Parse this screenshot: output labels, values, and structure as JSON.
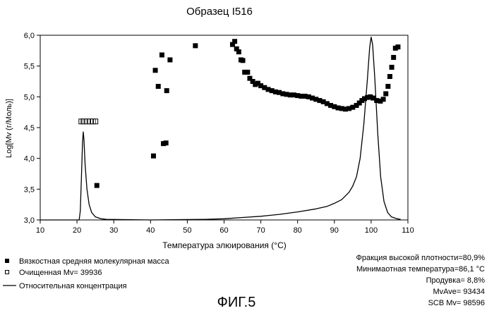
{
  "chart_data": {
    "type": "scatter",
    "title": "Образец I516",
    "xlabel": "Температура элюирования (°C)",
    "ylabel": "Log[Mv (г/Моль)]",
    "xlim": [
      10,
      110
    ],
    "ylim": [
      3.0,
      6.0
    ],
    "x_ticks": [
      10,
      20,
      30,
      40,
      50,
      60,
      70,
      80,
      90,
      100,
      110
    ],
    "y_ticks": [
      "3,0",
      "3,5",
      "4,0",
      "4,5",
      "5,0",
      "5,5",
      "6,0"
    ],
    "grid": false,
    "series": [
      {
        "name": "Вязкостная средняя молекулярная масса",
        "marker": "filled-square",
        "color": "#000000",
        "points": [
          [
            25.4,
            3.56
          ],
          [
            40.8,
            4.04
          ],
          [
            41.3,
            5.43
          ],
          [
            42.1,
            5.17
          ],
          [
            43.1,
            5.68
          ],
          [
            43.5,
            4.24
          ],
          [
            44.2,
            4.25
          ],
          [
            44.4,
            5.1
          ],
          [
            45.3,
            5.6
          ],
          [
            52.2,
            5.83
          ],
          [
            62.3,
            5.85
          ],
          [
            62.9,
            5.9
          ],
          [
            63.4,
            5.78
          ],
          [
            64.0,
            5.73
          ],
          [
            64.6,
            5.6
          ],
          [
            65.1,
            5.59
          ],
          [
            65.6,
            5.4
          ],
          [
            66.4,
            5.4
          ],
          [
            67.0,
            5.3
          ],
          [
            67.8,
            5.25
          ],
          [
            68.5,
            5.2
          ],
          [
            69.2,
            5.22
          ],
          [
            70.0,
            5.18
          ],
          [
            71.0,
            5.15
          ],
          [
            72.0,
            5.12
          ],
          [
            73.0,
            5.1
          ],
          [
            74.0,
            5.08
          ],
          [
            75.0,
            5.07
          ],
          [
            76.0,
            5.05
          ],
          [
            77.0,
            5.04
          ],
          [
            78.0,
            5.03
          ],
          [
            79.0,
            5.03
          ],
          [
            80.0,
            5.02
          ],
          [
            81.0,
            5.01
          ],
          [
            82.0,
            5.01
          ],
          [
            83.0,
            5.0
          ],
          [
            84.0,
            4.98
          ],
          [
            85.0,
            4.96
          ],
          [
            86.0,
            4.94
          ],
          [
            87.0,
            4.92
          ],
          [
            88.0,
            4.89
          ],
          [
            89.0,
            4.86
          ],
          [
            90.0,
            4.84
          ],
          [
            91.0,
            4.82
          ],
          [
            92.0,
            4.81
          ],
          [
            93.0,
            4.8
          ],
          [
            94.0,
            4.81
          ],
          [
            95.0,
            4.83
          ],
          [
            96.0,
            4.86
          ],
          [
            96.8,
            4.9
          ],
          [
            97.5,
            4.94
          ],
          [
            98.2,
            4.97
          ],
          [
            99.0,
            4.99
          ],
          [
            99.8,
            5.0
          ],
          [
            100.5,
            4.98
          ],
          [
            101.5,
            4.94
          ],
          [
            102.5,
            4.93
          ],
          [
            103.3,
            4.96
          ],
          [
            104.0,
            5.05
          ],
          [
            104.6,
            5.17
          ],
          [
            105.1,
            5.33
          ],
          [
            105.6,
            5.48
          ],
          [
            106.1,
            5.64
          ],
          [
            106.6,
            5.79
          ],
          [
            107.3,
            5.81
          ]
        ]
      },
      {
        "name": "Очищенная Mv= 39936",
        "marker": "hollow-square",
        "color": "#000000",
        "points": [
          [
            21.1,
            4.6
          ],
          [
            21.9,
            4.6
          ],
          [
            22.7,
            4.6
          ],
          [
            23.5,
            4.6
          ],
          [
            24.3,
            4.6
          ],
          [
            25.1,
            4.6
          ]
        ]
      },
      {
        "name": "Относительная концентрация",
        "marker": "line",
        "color": "#000000",
        "points": [
          [
            10,
            3.0
          ],
          [
            20.6,
            3.0
          ],
          [
            20.9,
            3.15
          ],
          [
            21.2,
            3.7
          ],
          [
            21.5,
            4.25
          ],
          [
            21.7,
            4.43
          ],
          [
            21.9,
            4.3
          ],
          [
            22.2,
            3.9
          ],
          [
            22.7,
            3.5
          ],
          [
            23.3,
            3.25
          ],
          [
            24.0,
            3.12
          ],
          [
            25.0,
            3.05
          ],
          [
            26.5,
            3.02
          ],
          [
            28.0,
            3.01
          ],
          [
            40.0,
            3.0
          ],
          [
            55.0,
            3.01
          ],
          [
            60.0,
            3.02
          ],
          [
            65.0,
            3.04
          ],
          [
            70.0,
            3.06
          ],
          [
            75.0,
            3.09
          ],
          [
            80.0,
            3.13
          ],
          [
            85.0,
            3.18
          ],
          [
            88.0,
            3.22
          ],
          [
            90.0,
            3.27
          ],
          [
            92.0,
            3.33
          ],
          [
            94.0,
            3.45
          ],
          [
            95.0,
            3.55
          ],
          [
            96.0,
            3.7
          ],
          [
            97.0,
            4.0
          ],
          [
            98.0,
            4.55
          ],
          [
            99.0,
            5.3
          ],
          [
            99.6,
            5.8
          ],
          [
            100.0,
            5.97
          ],
          [
            100.4,
            5.85
          ],
          [
            101.0,
            5.3
          ],
          [
            101.8,
            4.4
          ],
          [
            102.6,
            3.7
          ],
          [
            103.5,
            3.3
          ],
          [
            104.5,
            3.12
          ],
          [
            105.5,
            3.05
          ],
          [
            107.0,
            3.02
          ],
          [
            108.0,
            3.01
          ]
        ]
      }
    ],
    "legend": {
      "placement": "bottom-left",
      "items": [
        {
          "marker": "filled-square",
          "label": "Вязкостная средняя молекулярная масса"
        },
        {
          "marker": "hollow-square",
          "label": "Очищенная Mv= 39936"
        },
        {
          "marker": "line",
          "label": "Относительная концентрация"
        }
      ]
    },
    "annotations": [
      "Фракция высокой плотности=80,9%",
      "Минимаотная температура=86,1 °C",
      "Продувка= 8,8%",
      "MvAve= 93434",
      "SCB Mv= 98596"
    ]
  },
  "caption": "ФИГ.5"
}
